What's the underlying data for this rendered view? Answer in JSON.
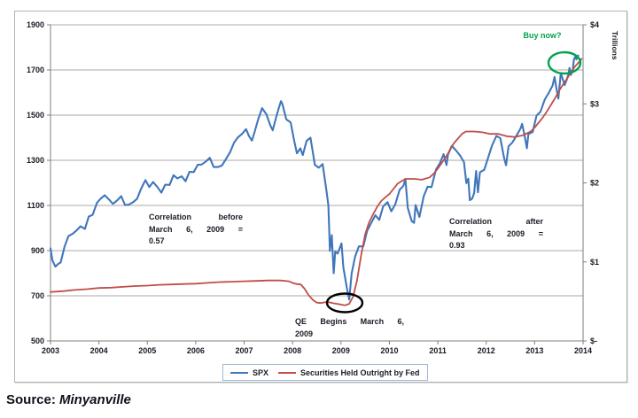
{
  "page": {
    "source_label": "Source: ",
    "source_value": "Minyanville"
  },
  "chart_data": {
    "type": "line",
    "title": "",
    "x_axis": {
      "range": [
        2003,
        2014
      ],
      "ticks": [
        2003,
        2004,
        2005,
        2006,
        2007,
        2008,
        2009,
        2010,
        2011,
        2012,
        2013,
        2014
      ]
    },
    "y_left": {
      "range": [
        500,
        1900
      ],
      "ticks": [
        500,
        700,
        900,
        1100,
        1300,
        1500,
        1700,
        1900
      ]
    },
    "y_right": {
      "range": [
        0,
        4
      ],
      "title": "Trillions",
      "tick_values": [
        0,
        1,
        2,
        3,
        4
      ],
      "tick_labels": [
        "$-",
        "$1",
        "$2",
        "$3",
        "$4"
      ]
    },
    "grid": "horizontal-on",
    "legend_position": "bottom-center",
    "series": [
      {
        "name": "SPX",
        "axis": "left",
        "color": "#4076bb",
        "points": [
          [
            2003.0,
            910
          ],
          [
            2003.04,
            856
          ],
          [
            2003.1,
            829
          ],
          [
            2003.16,
            841
          ],
          [
            2003.21,
            848
          ],
          [
            2003.29,
            917
          ],
          [
            2003.37,
            964
          ],
          [
            2003.46,
            975
          ],
          [
            2003.54,
            990
          ],
          [
            2003.62,
            1008
          ],
          [
            2003.71,
            996
          ],
          [
            2003.79,
            1051
          ],
          [
            2003.87,
            1058
          ],
          [
            2003.96,
            1112
          ],
          [
            2004.04,
            1131
          ],
          [
            2004.12,
            1145
          ],
          [
            2004.21,
            1126
          ],
          [
            2004.29,
            1107
          ],
          [
            2004.37,
            1121
          ],
          [
            2004.46,
            1141
          ],
          [
            2004.54,
            1102
          ],
          [
            2004.62,
            1104
          ],
          [
            2004.71,
            1115
          ],
          [
            2004.79,
            1130
          ],
          [
            2004.87,
            1174
          ],
          [
            2004.96,
            1212
          ],
          [
            2005.04,
            1181
          ],
          [
            2005.12,
            1204
          ],
          [
            2005.21,
            1181
          ],
          [
            2005.29,
            1157
          ],
          [
            2005.37,
            1192
          ],
          [
            2005.46,
            1191
          ],
          [
            2005.54,
            1234
          ],
          [
            2005.62,
            1220
          ],
          [
            2005.71,
            1229
          ],
          [
            2005.79,
            1207
          ],
          [
            2005.87,
            1249
          ],
          [
            2005.96,
            1248
          ],
          [
            2006.04,
            1280
          ],
          [
            2006.12,
            1281
          ],
          [
            2006.21,
            1295
          ],
          [
            2006.29,
            1311
          ],
          [
            2006.37,
            1270
          ],
          [
            2006.46,
            1270
          ],
          [
            2006.54,
            1277
          ],
          [
            2006.62,
            1304
          ],
          [
            2006.71,
            1336
          ],
          [
            2006.79,
            1378
          ],
          [
            2006.87,
            1401
          ],
          [
            2006.96,
            1418
          ],
          [
            2007.04,
            1438
          ],
          [
            2007.1,
            1407
          ],
          [
            2007.16,
            1387
          ],
          [
            2007.21,
            1421
          ],
          [
            2007.29,
            1482
          ],
          [
            2007.37,
            1531
          ],
          [
            2007.46,
            1503
          ],
          [
            2007.54,
            1455
          ],
          [
            2007.59,
            1433
          ],
          [
            2007.64,
            1474
          ],
          [
            2007.71,
            1527
          ],
          [
            2007.76,
            1562
          ],
          [
            2007.79,
            1549
          ],
          [
            2007.87,
            1481
          ],
          [
            2007.96,
            1468
          ],
          [
            2008.04,
            1379
          ],
          [
            2008.09,
            1331
          ],
          [
            2008.16,
            1353
          ],
          [
            2008.21,
            1323
          ],
          [
            2008.29,
            1386
          ],
          [
            2008.37,
            1400
          ],
          [
            2008.46,
            1280
          ],
          [
            2008.54,
            1267
          ],
          [
            2008.62,
            1283
          ],
          [
            2008.7,
            1166
          ],
          [
            2008.74,
            1099
          ],
          [
            2008.77,
            899
          ],
          [
            2008.81,
            969
          ],
          [
            2008.85,
            800
          ],
          [
            2008.88,
            896
          ],
          [
            2008.93,
            887
          ],
          [
            2008.96,
            903
          ],
          [
            2009.01,
            932
          ],
          [
            2009.05,
            826
          ],
          [
            2009.12,
            735
          ],
          [
            2009.17,
            683
          ],
          [
            2009.22,
            798
          ],
          [
            2009.29,
            873
          ],
          [
            2009.37,
            919
          ],
          [
            2009.46,
            919
          ],
          [
            2009.54,
            987
          ],
          [
            2009.62,
            1021
          ],
          [
            2009.71,
            1057
          ],
          [
            2009.79,
            1036
          ],
          [
            2009.87,
            1096
          ],
          [
            2009.96,
            1115
          ],
          [
            2010.04,
            1074
          ],
          [
            2010.12,
            1104
          ],
          [
            2010.21,
            1169
          ],
          [
            2010.29,
            1187
          ],
          [
            2010.33,
            1217
          ],
          [
            2010.38,
            1089
          ],
          [
            2010.46,
            1031
          ],
          [
            2010.51,
            1023
          ],
          [
            2010.54,
            1102
          ],
          [
            2010.62,
            1049
          ],
          [
            2010.71,
            1141
          ],
          [
            2010.79,
            1183
          ],
          [
            2010.87,
            1181
          ],
          [
            2010.96,
            1258
          ],
          [
            2011.04,
            1286
          ],
          [
            2011.12,
            1327
          ],
          [
            2011.18,
            1279
          ],
          [
            2011.21,
            1326
          ],
          [
            2011.29,
            1364
          ],
          [
            2011.37,
            1345
          ],
          [
            2011.46,
            1321
          ],
          [
            2011.54,
            1292
          ],
          [
            2011.59,
            1199
          ],
          [
            2011.63,
            1219
          ],
          [
            2011.66,
            1123
          ],
          [
            2011.71,
            1131
          ],
          [
            2011.75,
            1155
          ],
          [
            2011.79,
            1253
          ],
          [
            2011.83,
            1158
          ],
          [
            2011.87,
            1247
          ],
          [
            2011.96,
            1258
          ],
          [
            2012.04,
            1312
          ],
          [
            2012.12,
            1366
          ],
          [
            2012.21,
            1408
          ],
          [
            2012.29,
            1398
          ],
          [
            2012.37,
            1310
          ],
          [
            2012.41,
            1278
          ],
          [
            2012.46,
            1362
          ],
          [
            2012.54,
            1379
          ],
          [
            2012.62,
            1407
          ],
          [
            2012.71,
            1441
          ],
          [
            2012.74,
            1461
          ],
          [
            2012.79,
            1412
          ],
          [
            2012.84,
            1353
          ],
          [
            2012.87,
            1416
          ],
          [
            2012.96,
            1426
          ],
          [
            2013.04,
            1498
          ],
          [
            2013.12,
            1515
          ],
          [
            2013.21,
            1569
          ],
          [
            2013.29,
            1598
          ],
          [
            2013.37,
            1631
          ],
          [
            2013.41,
            1669
          ],
          [
            2013.46,
            1606
          ],
          [
            2013.49,
            1573
          ],
          [
            2013.54,
            1686
          ],
          [
            2013.62,
            1633
          ],
          [
            2013.66,
            1655
          ],
          [
            2013.7,
            1682
          ],
          [
            2013.72,
            1709
          ],
          [
            2013.75,
            1678
          ],
          [
            2013.79,
            1703
          ],
          [
            2013.81,
            1745
          ],
          [
            2013.84,
            1760
          ],
          [
            2013.86,
            1747
          ],
          [
            2013.9,
            1764
          ]
        ]
      },
      {
        "name": "Securities Held Outright by Fed",
        "axis": "right",
        "color": "#bf4e4a",
        "points": [
          [
            2003.0,
            0.62
          ],
          [
            2003.25,
            0.63
          ],
          [
            2003.5,
            0.645
          ],
          [
            2003.75,
            0.655
          ],
          [
            2004.0,
            0.67
          ],
          [
            2004.25,
            0.675
          ],
          [
            2004.5,
            0.685
          ],
          [
            2004.75,
            0.695
          ],
          [
            2005.0,
            0.7
          ],
          [
            2005.25,
            0.71
          ],
          [
            2005.5,
            0.715
          ],
          [
            2005.75,
            0.72
          ],
          [
            2006.0,
            0.725
          ],
          [
            2006.25,
            0.735
          ],
          [
            2006.5,
            0.745
          ],
          [
            2006.75,
            0.75
          ],
          [
            2007.0,
            0.755
          ],
          [
            2007.25,
            0.76
          ],
          [
            2007.5,
            0.765
          ],
          [
            2007.75,
            0.765
          ],
          [
            2007.92,
            0.755
          ],
          [
            2008.0,
            0.735
          ],
          [
            2008.08,
            0.72
          ],
          [
            2008.17,
            0.715
          ],
          [
            2008.25,
            0.66
          ],
          [
            2008.33,
            0.58
          ],
          [
            2008.42,
            0.52
          ],
          [
            2008.5,
            0.485
          ],
          [
            2008.58,
            0.48
          ],
          [
            2008.67,
            0.49
          ],
          [
            2008.75,
            0.49
          ],
          [
            2008.83,
            0.48
          ],
          [
            2008.92,
            0.47
          ],
          [
            2009.0,
            0.46
          ],
          [
            2009.08,
            0.45
          ],
          [
            2009.17,
            0.47
          ],
          [
            2009.25,
            0.56
          ],
          [
            2009.33,
            0.76
          ],
          [
            2009.42,
            1.1
          ],
          [
            2009.5,
            1.35
          ],
          [
            2009.58,
            1.5
          ],
          [
            2009.67,
            1.61
          ],
          [
            2009.75,
            1.7
          ],
          [
            2009.83,
            1.77
          ],
          [
            2009.92,
            1.82
          ],
          [
            2010.0,
            1.86
          ],
          [
            2010.17,
            1.99
          ],
          [
            2010.33,
            2.05
          ],
          [
            2010.5,
            2.05
          ],
          [
            2010.67,
            2.04
          ],
          [
            2010.83,
            2.07
          ],
          [
            2010.92,
            2.12
          ],
          [
            2011.0,
            2.18
          ],
          [
            2011.17,
            2.33
          ],
          [
            2011.33,
            2.5
          ],
          [
            2011.5,
            2.62
          ],
          [
            2011.58,
            2.65
          ],
          [
            2011.75,
            2.65
          ],
          [
            2011.92,
            2.64
          ],
          [
            2012.08,
            2.62
          ],
          [
            2012.25,
            2.62
          ],
          [
            2012.42,
            2.59
          ],
          [
            2012.58,
            2.58
          ],
          [
            2012.75,
            2.6
          ],
          [
            2012.92,
            2.65
          ],
          [
            2013.0,
            2.7
          ],
          [
            2013.08,
            2.76
          ],
          [
            2013.17,
            2.83
          ],
          [
            2013.25,
            2.9
          ],
          [
            2013.33,
            2.98
          ],
          [
            2013.42,
            3.07
          ],
          [
            2013.5,
            3.16
          ],
          [
            2013.58,
            3.24
          ],
          [
            2013.67,
            3.32
          ],
          [
            2013.75,
            3.4
          ],
          [
            2013.83,
            3.47
          ],
          [
            2013.92,
            3.53
          ],
          [
            2013.97,
            3.57
          ]
        ]
      }
    ],
    "annotations": {
      "correlation_before": {
        "lines": [
          "Correlation before",
          "March 6, 2009 =",
          "0.57"
        ]
      },
      "correlation_after": {
        "lines": [
          "Correlation after",
          "March 6, 2009 =",
          "0.93"
        ]
      },
      "qe_note": {
        "lines": [
          "QE Begins March 6,",
          "2009"
        ]
      },
      "buy_now": {
        "text": "Buy now?",
        "color": "#00a24d"
      },
      "ellipses": [
        {
          "name": "qe-begins-ellipse",
          "cx": 372,
          "cy": 329,
          "rx": 20,
          "ry": 10.5,
          "color": "#000000"
        },
        {
          "name": "buy-now-ellipse",
          "cx": 620,
          "cy": 58,
          "rx": 18,
          "ry": 12,
          "color": "#00a24d"
        }
      ]
    },
    "legend": {
      "items": [
        {
          "label": "SPX",
          "color": "#4076bb"
        },
        {
          "label": "Securities Held Outright by Fed",
          "color": "#bf4e4a"
        }
      ]
    },
    "colors": {
      "gridline": "#a8a8a8",
      "axis": "#7f7f7f",
      "tick_text": "#1b1b26"
    }
  }
}
